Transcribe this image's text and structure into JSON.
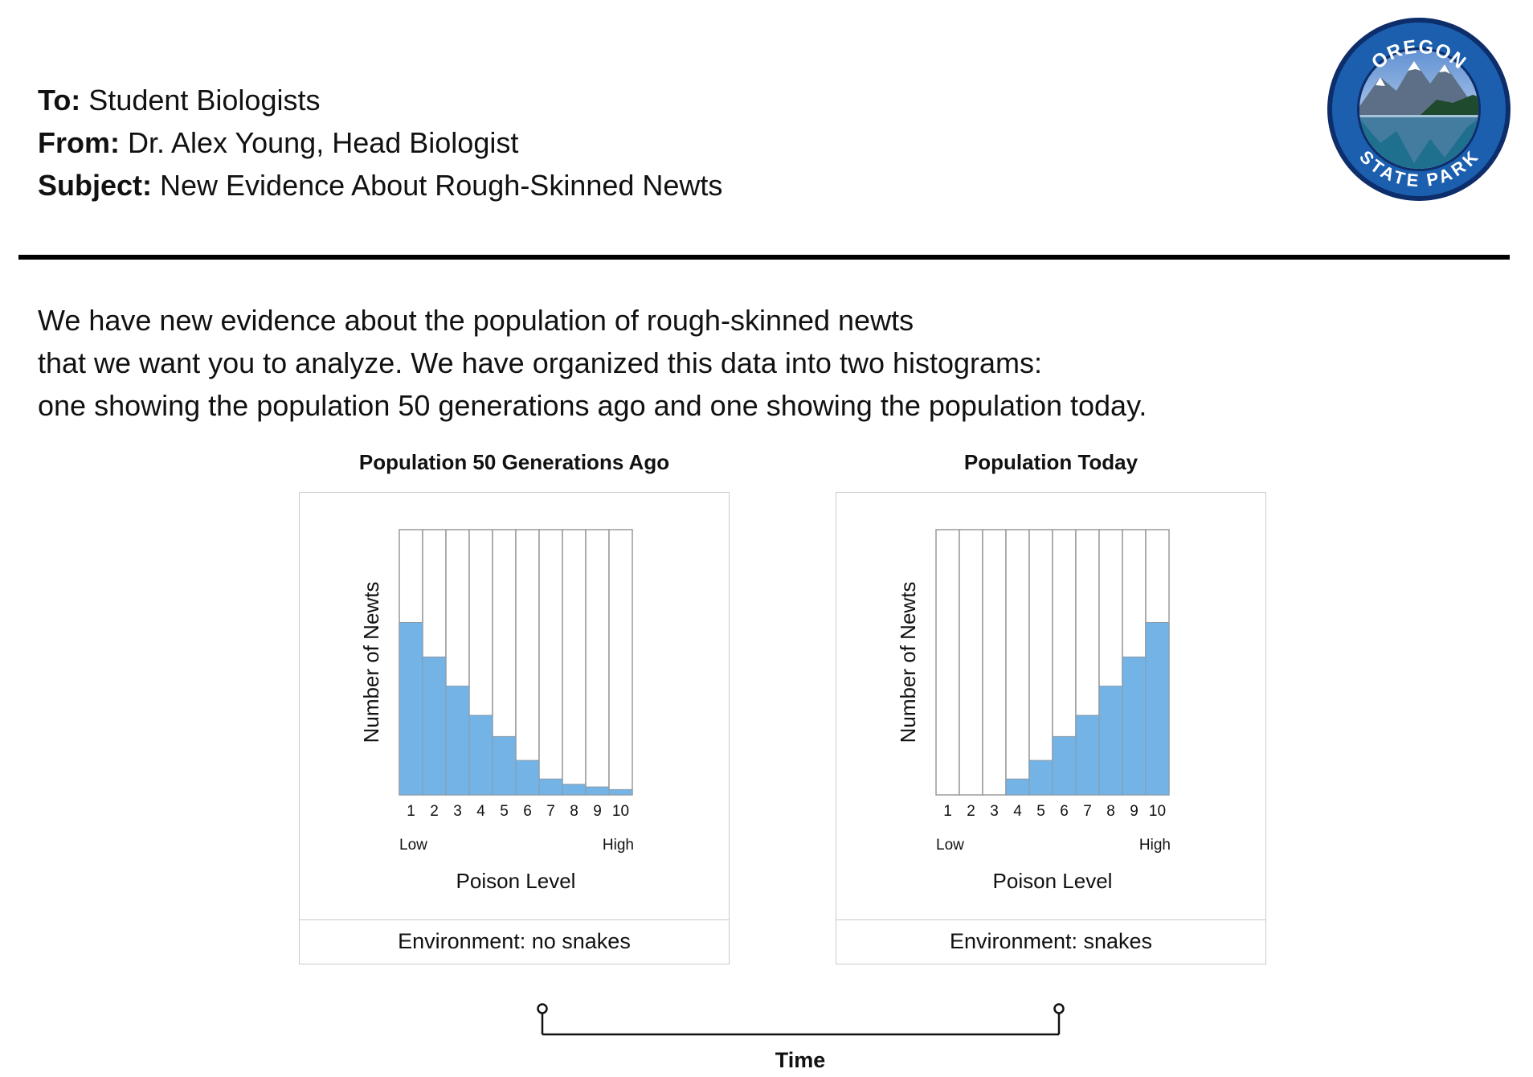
{
  "memo": {
    "to_label": "To:",
    "to_value": " Student Biologists",
    "from_label": "From:",
    "from_value": " Dr. Alex Young, Head Biologist",
    "subject_label": "Subject:",
    "subject_value": " New Evidence About Rough-Skinned Newts"
  },
  "seal": {
    "top_text": "OREGON",
    "bottom_text": "STATE PARK",
    "colors": {
      "ring": "#1b5fae",
      "outline": "#0d2d6b",
      "text": "#ffffff"
    }
  },
  "intro_lines": [
    "We have new evidence about the population of rough-skinned newts",
    "that we want you to analyze. We have organized this data into two histograms:",
    "one showing the population 50 generations ago and one showing the population today."
  ],
  "bar_color": "#74b3e6",
  "chart_data": [
    {
      "type": "bar",
      "title": "Population 50 Generations Ago",
      "categories": [
        "1",
        "2",
        "3",
        "4",
        "5",
        "6",
        "7",
        "8",
        "9",
        "10"
      ],
      "values": [
        65,
        52,
        41,
        30,
        22,
        13,
        6,
        4,
        3,
        2
      ],
      "ylim": [
        0,
        100
      ],
      "xlabel": "Poison Level",
      "ylabel": "Number of Newts",
      "x_low_label": "Low",
      "x_high_label": "High",
      "environment": "Environment: no snakes"
    },
    {
      "type": "bar",
      "title": "Population Today",
      "categories": [
        "1",
        "2",
        "3",
        "4",
        "5",
        "6",
        "7",
        "8",
        "9",
        "10"
      ],
      "values": [
        0,
        0,
        0,
        6,
        13,
        22,
        30,
        41,
        52,
        65
      ],
      "ylim": [
        0,
        100
      ],
      "xlabel": "Poison Level",
      "ylabel": "Number of Newts",
      "x_low_label": "Low",
      "x_high_label": "High",
      "environment": "Environment: snakes"
    }
  ],
  "timeline": {
    "label": "Time"
  }
}
